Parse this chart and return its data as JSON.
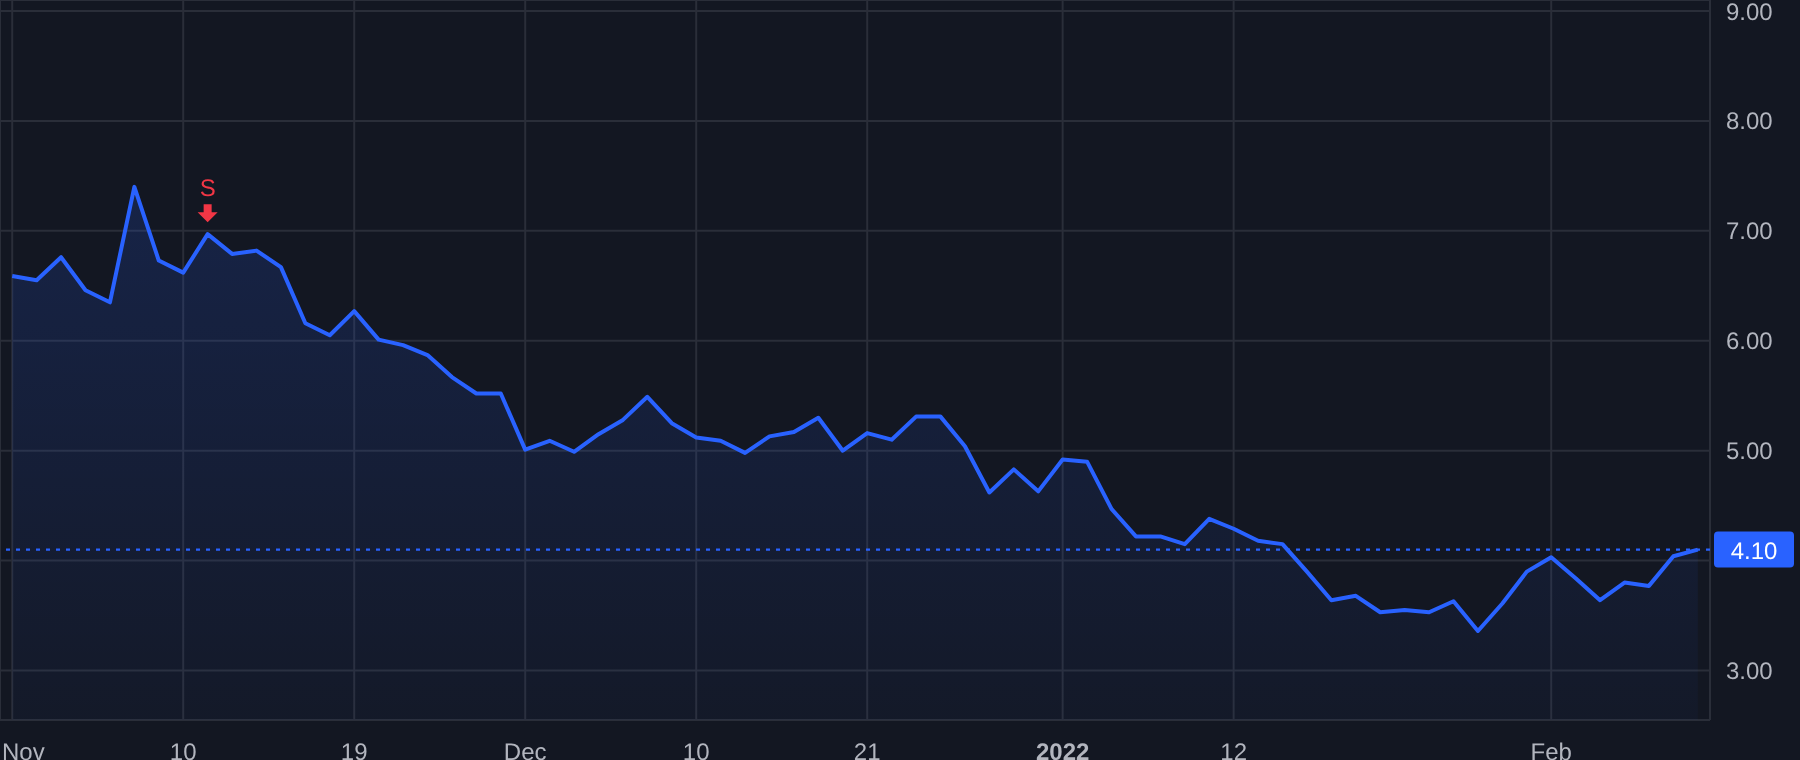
{
  "chart_data": {
    "type": "area",
    "categories": [
      "Nov",
      null,
      null,
      null,
      null,
      null,
      null,
      "10",
      null,
      null,
      null,
      null,
      null,
      null,
      "19",
      null,
      null,
      null,
      null,
      null,
      null,
      "Dec",
      null,
      null,
      null,
      null,
      null,
      null,
      "10",
      null,
      null,
      null,
      null,
      null,
      null,
      "21",
      null,
      null,
      null,
      null,
      null,
      null,
      null,
      "2022",
      null,
      null,
      null,
      null,
      null,
      null,
      "12",
      null,
      null,
      null,
      null,
      null,
      null,
      null,
      null,
      null,
      null,
      null,
      null,
      "Feb",
      null,
      null,
      null,
      null,
      null,
      null
    ],
    "series": [
      {
        "color": "#2962ff",
        "values": [
          6.59,
          6.55,
          6.76,
          6.46,
          6.35,
          7.4,
          6.73,
          6.62,
          6.97,
          6.79,
          6.82,
          6.67,
          6.16,
          6.05,
          6.27,
          6.01,
          5.96,
          5.87,
          5.67,
          5.52,
          5.52,
          5.01,
          5.09,
          4.99,
          5.15,
          5.28,
          5.49,
          5.25,
          5.12,
          5.09,
          4.98,
          5.13,
          5.17,
          5.3,
          5.0,
          5.16,
          5.1,
          5.31,
          5.31,
          5.04,
          4.62,
          4.83,
          4.63,
          4.92,
          4.9,
          4.47,
          4.22,
          4.22,
          4.15,
          4.38,
          4.29,
          4.18,
          4.15,
          3.9,
          3.64,
          3.68,
          3.53,
          3.55,
          3.53,
          3.63,
          3.36,
          3.61,
          3.9,
          4.03,
          3.84,
          3.64,
          3.8,
          3.77,
          4.04,
          4.1
        ]
      }
    ],
    "ylim": [
      2.55,
      9.1
    ],
    "yticks": [
      {
        "value": 3,
        "label": "3.00"
      },
      {
        "value": 4,
        "label": null
      },
      {
        "value": 5,
        "label": "5.00"
      },
      {
        "value": 6,
        "label": "6.00"
      },
      {
        "value": 7,
        "label": "7.00"
      },
      {
        "value": 8,
        "label": "8.00"
      },
      {
        "value": 9,
        "label": "9.00"
      }
    ],
    "grid": true,
    "ref_lines": [
      {
        "axis": "y",
        "value": 4.1,
        "label": "4.10",
        "color": "#2962ff",
        "line_style": "dotted"
      }
    ],
    "annotations": [
      {
        "text": "S",
        "y": 6.97
      }
    ]
  }
}
